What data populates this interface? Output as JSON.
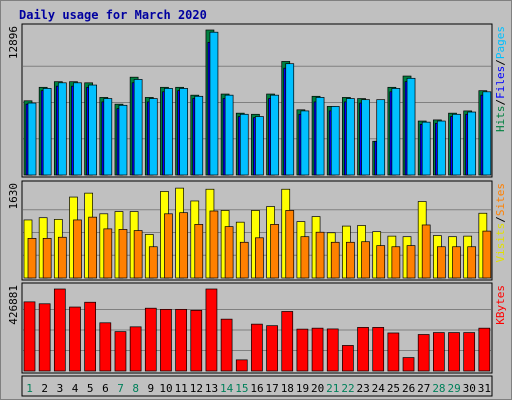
{
  "chart_data": {
    "type": "bar",
    "title": "Daily usage for March 2020",
    "days": [
      "1",
      "2",
      "3",
      "4",
      "5",
      "6",
      "7",
      "8",
      "9",
      "10",
      "11",
      "12",
      "13",
      "14",
      "15",
      "16",
      "17",
      "18",
      "19",
      "20",
      "21",
      "22",
      "23",
      "24",
      "25",
      "26",
      "27",
      "28",
      "29",
      "30",
      "31"
    ],
    "weekend_days": [
      "1",
      "7",
      "8",
      "14",
      "15",
      "21",
      "22",
      "28",
      "29"
    ],
    "panels": [
      {
        "id": "hits",
        "max_label": "12896",
        "ylim": [
          0,
          12896
        ],
        "right_labels": [
          {
            "text": "Hits",
            "color": "#008040"
          },
          {
            "text": "/",
            "color": "#000000"
          },
          {
            "text": "Files",
            "color": "#0000ff"
          },
          {
            "text": "/",
            "color": "#000000"
          },
          {
            "text": "Pages",
            "color": "#00c0ff"
          }
        ],
        "series": [
          {
            "key": "hits",
            "color": "#008040",
            "values": [
              6600,
              7800,
              8300,
              8300,
              8200,
              6900,
              6300,
              8700,
              6900,
              7800,
              7800,
              7100,
              12896,
              7200,
              5500,
              5400,
              7200,
              10100,
              5800,
              7000,
              6100,
              6900,
              6800,
              3000,
              7800,
              8800,
              4800,
              4900,
              5500,
              5700,
              7500
            ]
          },
          {
            "key": "files",
            "color": "#0000ff",
            "values": [
              6300,
              7500,
              7900,
              7900,
              7800,
              6500,
              5900,
              8200,
              6500,
              7400,
              7500,
              6800,
              11800,
              6800,
              5200,
              5100,
              6800,
              9500,
              5400,
              6500,
              5700,
              6500,
              6400,
              3000,
              7400,
              8300,
              4500,
              4600,
              5200,
              5400,
              7100
            ]
          },
          {
            "key": "pages",
            "color": "#00c0ff",
            "values": [
              6400,
              7700,
              8200,
              8200,
              8000,
              6800,
              6200,
              8500,
              6800,
              7700,
              7700,
              7000,
              12700,
              7100,
              5400,
              5200,
              7100,
              9900,
              5700,
              6900,
              6100,
              6800,
              6700,
              6700,
              7700,
              8600,
              4700,
              4800,
              5400,
              5600,
              7400
            ]
          }
        ]
      },
      {
        "id": "visits",
        "max_label": "1630",
        "ylim": [
          0,
          1630
        ],
        "right_labels": [
          {
            "text": "Visits",
            "color": "#e0e000"
          },
          {
            "text": "/",
            "color": "#000000"
          },
          {
            "text": "Sites",
            "color": "#ff8000"
          }
        ],
        "series": [
          {
            "key": "visits",
            "color": "#ffff00",
            "values": [
              1040,
              1080,
              1050,
              1450,
              1520,
              1150,
              1190,
              1190,
              780,
              1550,
              1610,
              1380,
              1590,
              1210,
              1000,
              1210,
              1280,
              1590,
              1010,
              1100,
              810,
              930,
              940,
              830,
              750,
              740,
              1370,
              760,
              740,
              750,
              1160
            ]
          },
          {
            "key": "sites",
            "color": "#ff8000",
            "values": [
              710,
              710,
              730,
              1040,
              1090,
              880,
              870,
              850,
              560,
              1150,
              1170,
              960,
              1200,
              920,
              640,
              720,
              960,
              1210,
              740,
              820,
              640,
              640,
              650,
              580,
              560,
              580,
              950,
              560,
              560,
              560,
              840
            ]
          }
        ]
      },
      {
        "id": "kbytes",
        "max_label": "426881",
        "ylim": [
          0,
          426881
        ],
        "right_labels": [
          {
            "text": "KBytes",
            "color": "#ff0000"
          }
        ],
        "series": [
          {
            "key": "kbytes",
            "color": "#ff0000",
            "values": [
              360000,
              350000,
              426881,
              333000,
              358000,
              251000,
              205000,
              230000,
              327000,
              321000,
              321000,
              316000,
              426881,
              270000,
              58000,
              244000,
              236000,
              310000,
              218000,
              223000,
              219000,
              133000,
              227000,
              227000,
              198000,
              70000,
              190000,
              200000,
              200000,
              200000,
              223000
            ]
          }
        ]
      }
    ]
  }
}
